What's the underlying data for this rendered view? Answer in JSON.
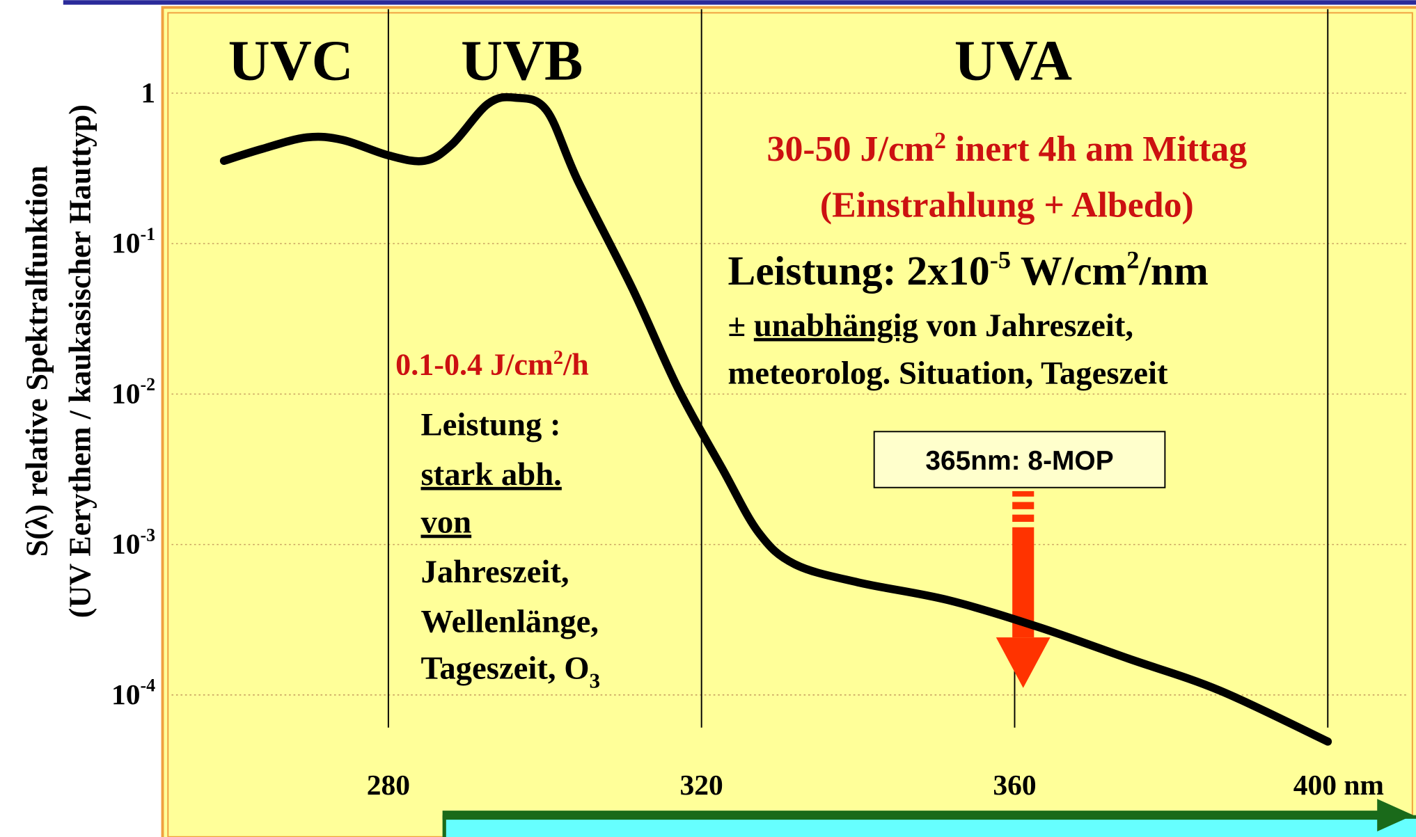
{
  "chart_data": {
    "type": "line",
    "y_label": [
      "S(λ) relative Spektralfunktion",
      "(UV Eerythem / kaukasischer Hauttyp)"
    ],
    "x": [
      259,
      263.8,
      269.6,
      274.2,
      280,
      284.6,
      288.1,
      292.7,
      296.2,
      300.2,
      304.2,
      311.2,
      317,
      322.7,
      327.3,
      331.9,
      340,
      351.5,
      363.1,
      374.6,
      386.2,
      400
    ],
    "series": [
      {
        "color": "#000000",
        "values": [
          0.355,
          0.425,
          0.508,
          0.488,
          0.386,
          0.355,
          0.455,
          0.847,
          0.933,
          0.769,
          0.262,
          0.0499,
          0.0109,
          0.00316,
          0.0012,
          0.00074,
          0.00056,
          0.000427,
          0.000282,
          0.000174,
          0.000107,
          4.9e-05
        ]
      }
    ],
    "xlim": [
      250,
      410
    ],
    "xticks": [
      280,
      320,
      360,
      {
        "value": 400,
        "label": "400 nm"
      }
    ],
    "ylim": [
      1e-05,
      5
    ],
    "log_y": true,
    "yticks": [
      1,
      {
        "value": 0.1,
        "label": "10",
        "sup": "-1"
      },
      {
        "value": 0.01,
        "label": "10",
        "sup": "-2"
      },
      {
        "value": 0.001,
        "label": "10",
        "sup": "-3"
      },
      {
        "value": 0.0001,
        "label": "10",
        "sup": "-4"
      }
    ],
    "grid": true,
    "regions": [
      "UVC",
      "UVB",
      "UVA"
    ],
    "uva_dose": {
      "line1": [
        "30-50 J/cm",
        "2",
        " inert 4h am Mittag"
      ],
      "line2": "(Einstrahlung + Albedo)"
    },
    "uva_power": {
      "line1": [
        "Leistung: 2x10",
        "-5",
        " W/cm",
        "2",
        "/nm"
      ],
      "line2": [
        "± ",
        "unabhängig",
        " von Jahreszeit,"
      ],
      "line3": "meteorolog. Situation, Tageszeit"
    },
    "uvb_dose": [
      "0.1-0.4 J/cm",
      "2",
      "/h"
    ],
    "uvb_power": [
      "Leistung :",
      "stark abh.",
      "von",
      "Jahreszeit,",
      "Wellenlänge,",
      [
        "Tageszeit, O",
        "3"
      ]
    ],
    "marker_box": "365nm: 8-MOP"
  }
}
